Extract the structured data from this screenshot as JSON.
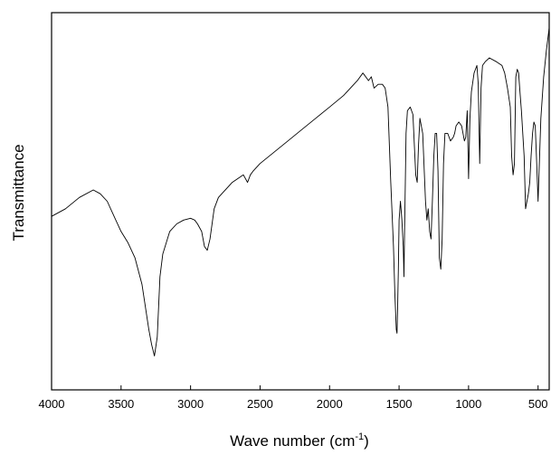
{
  "chart_data": {
    "type": "line",
    "title": "",
    "xlabel": "Wave number (cm",
    "xlabel_sup": "-1",
    "xlabel_suffix": ")",
    "ylabel": "Transmittance",
    "xlim": [
      4000,
      420
    ],
    "ylim": [
      0,
      100
    ],
    "x_reversed": true,
    "y_tick_labels_shown": false,
    "grid": false,
    "legend": "none",
    "x_ticks": [
      4000,
      3500,
      3000,
      2500,
      2000,
      1500,
      1000,
      500
    ],
    "x_tick_labels": [
      "4000",
      "3500",
      "3000",
      "2500",
      "2000",
      "1500",
      "1000",
      "500"
    ],
    "line_color": "#000000",
    "series": [
      {
        "x": [
          4000,
          3900,
          3800,
          3700,
          3650,
          3600,
          3550,
          3500,
          3450,
          3400,
          3350,
          3300,
          3280,
          3260,
          3240,
          3220,
          3200,
          3150,
          3100,
          3050,
          3000,
          2970,
          2950,
          2920,
          2900,
          2880,
          2860,
          2830,
          2800,
          2700,
          2620,
          2590,
          2570,
          2550,
          2500,
          2400,
          2300,
          2200,
          2100,
          2000,
          1900,
          1800,
          1760,
          1720,
          1700,
          1680,
          1650,
          1620,
          1600,
          1580,
          1560,
          1540,
          1530,
          1520,
          1515,
          1510,
          1505,
          1500,
          1490,
          1480,
          1470,
          1465,
          1460,
          1455,
          1450,
          1440,
          1420,
          1400,
          1380,
          1370,
          1360,
          1350,
          1330,
          1310,
          1300,
          1290,
          1280,
          1270,
          1260,
          1250,
          1240,
          1230,
          1220,
          1210,
          1200,
          1190,
          1180,
          1170,
          1150,
          1130,
          1110,
          1100,
          1090,
          1070,
          1050,
          1030,
          1020,
          1010,
          1000,
          990,
          980,
          960,
          940,
          930,
          920,
          910,
          900,
          880,
          850,
          800,
          760,
          740,
          720,
          700,
          690,
          680,
          670,
          660,
          650,
          640,
          630,
          620,
          600,
          590,
          580,
          570,
          560,
          550,
          540,
          530,
          520,
          510,
          500,
          480,
          460,
          440,
          420
        ],
        "y": [
          46,
          48,
          51,
          53,
          52,
          50,
          46,
          42,
          39,
          35,
          28,
          16,
          12,
          9,
          14,
          30,
          36,
          42,
          44,
          45,
          45.5,
          45,
          44,
          42,
          38,
          37,
          40,
          48,
          51,
          55,
          57,
          55,
          57,
          58,
          60,
          63,
          66,
          69,
          72,
          75,
          78,
          82,
          84,
          82,
          83,
          80,
          81,
          81,
          80,
          75,
          55,
          38,
          25,
          16,
          15,
          22,
          32,
          45,
          50,
          45,
          38,
          30,
          43,
          55,
          68,
          74,
          75,
          73,
          57,
          55,
          65,
          72,
          68,
          50,
          45,
          48,
          42,
          40,
          50,
          62,
          68,
          68,
          58,
          35,
          32,
          40,
          60,
          68,
          68,
          66,
          67,
          68,
          70,
          71,
          70,
          66,
          67,
          74,
          56,
          72,
          79,
          84,
          86,
          81,
          60,
          80,
          86,
          87,
          88,
          87,
          86,
          84,
          80,
          75,
          62,
          57,
          60,
          83,
          85,
          84,
          79,
          74,
          62,
          48,
          50,
          52,
          55,
          62,
          68,
          71,
          70,
          60,
          50,
          72,
          83,
          90,
          96
        ]
      }
    ]
  }
}
